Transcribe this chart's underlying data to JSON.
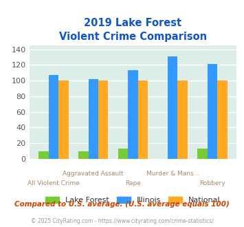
{
  "title_line1": "2019 Lake Forest",
  "title_line2": "Violent Crime Comparison",
  "groups": [
    {
      "label_top": null,
      "label_bottom": "All Violent Crime",
      "lake_forest": 10,
      "illinois": 107,
      "national": 100
    },
    {
      "label_top": "Aggravated Assault",
      "label_bottom": null,
      "lake_forest": 10,
      "illinois": 102,
      "national": 100
    },
    {
      "label_top": null,
      "label_bottom": "Rape",
      "lake_forest": 13,
      "illinois": 113,
      "national": 100
    },
    {
      "label_top": "Murder & Mans...",
      "label_bottom": null,
      "lake_forest": 0,
      "illinois": 131,
      "national": 100
    },
    {
      "label_top": null,
      "label_bottom": "Robbery",
      "lake_forest": 13,
      "illinois": 121,
      "national": 100
    }
  ],
  "colors": {
    "lake_forest": "#77cc33",
    "illinois": "#3399ff",
    "national": "#ffaa22"
  },
  "ylim": [
    0,
    145
  ],
  "yticks": [
    0,
    20,
    40,
    60,
    80,
    100,
    120,
    140
  ],
  "bar_width": 0.25,
  "chart_bg": "#ddeee8",
  "fig_bg": "#ffffff",
  "title_color": "#1155cc",
  "xlabel_color": "#aa8866",
  "legend_labels": [
    "Lake Forest",
    "Illinois",
    "National"
  ],
  "note": "Compared to U.S. average. (U.S. average equals 100)",
  "footnote": "© 2025 CityRating.com - https://www.cityrating.com/crime-statistics/",
  "note_color": "#cc4400",
  "footnote_color": "#999999"
}
